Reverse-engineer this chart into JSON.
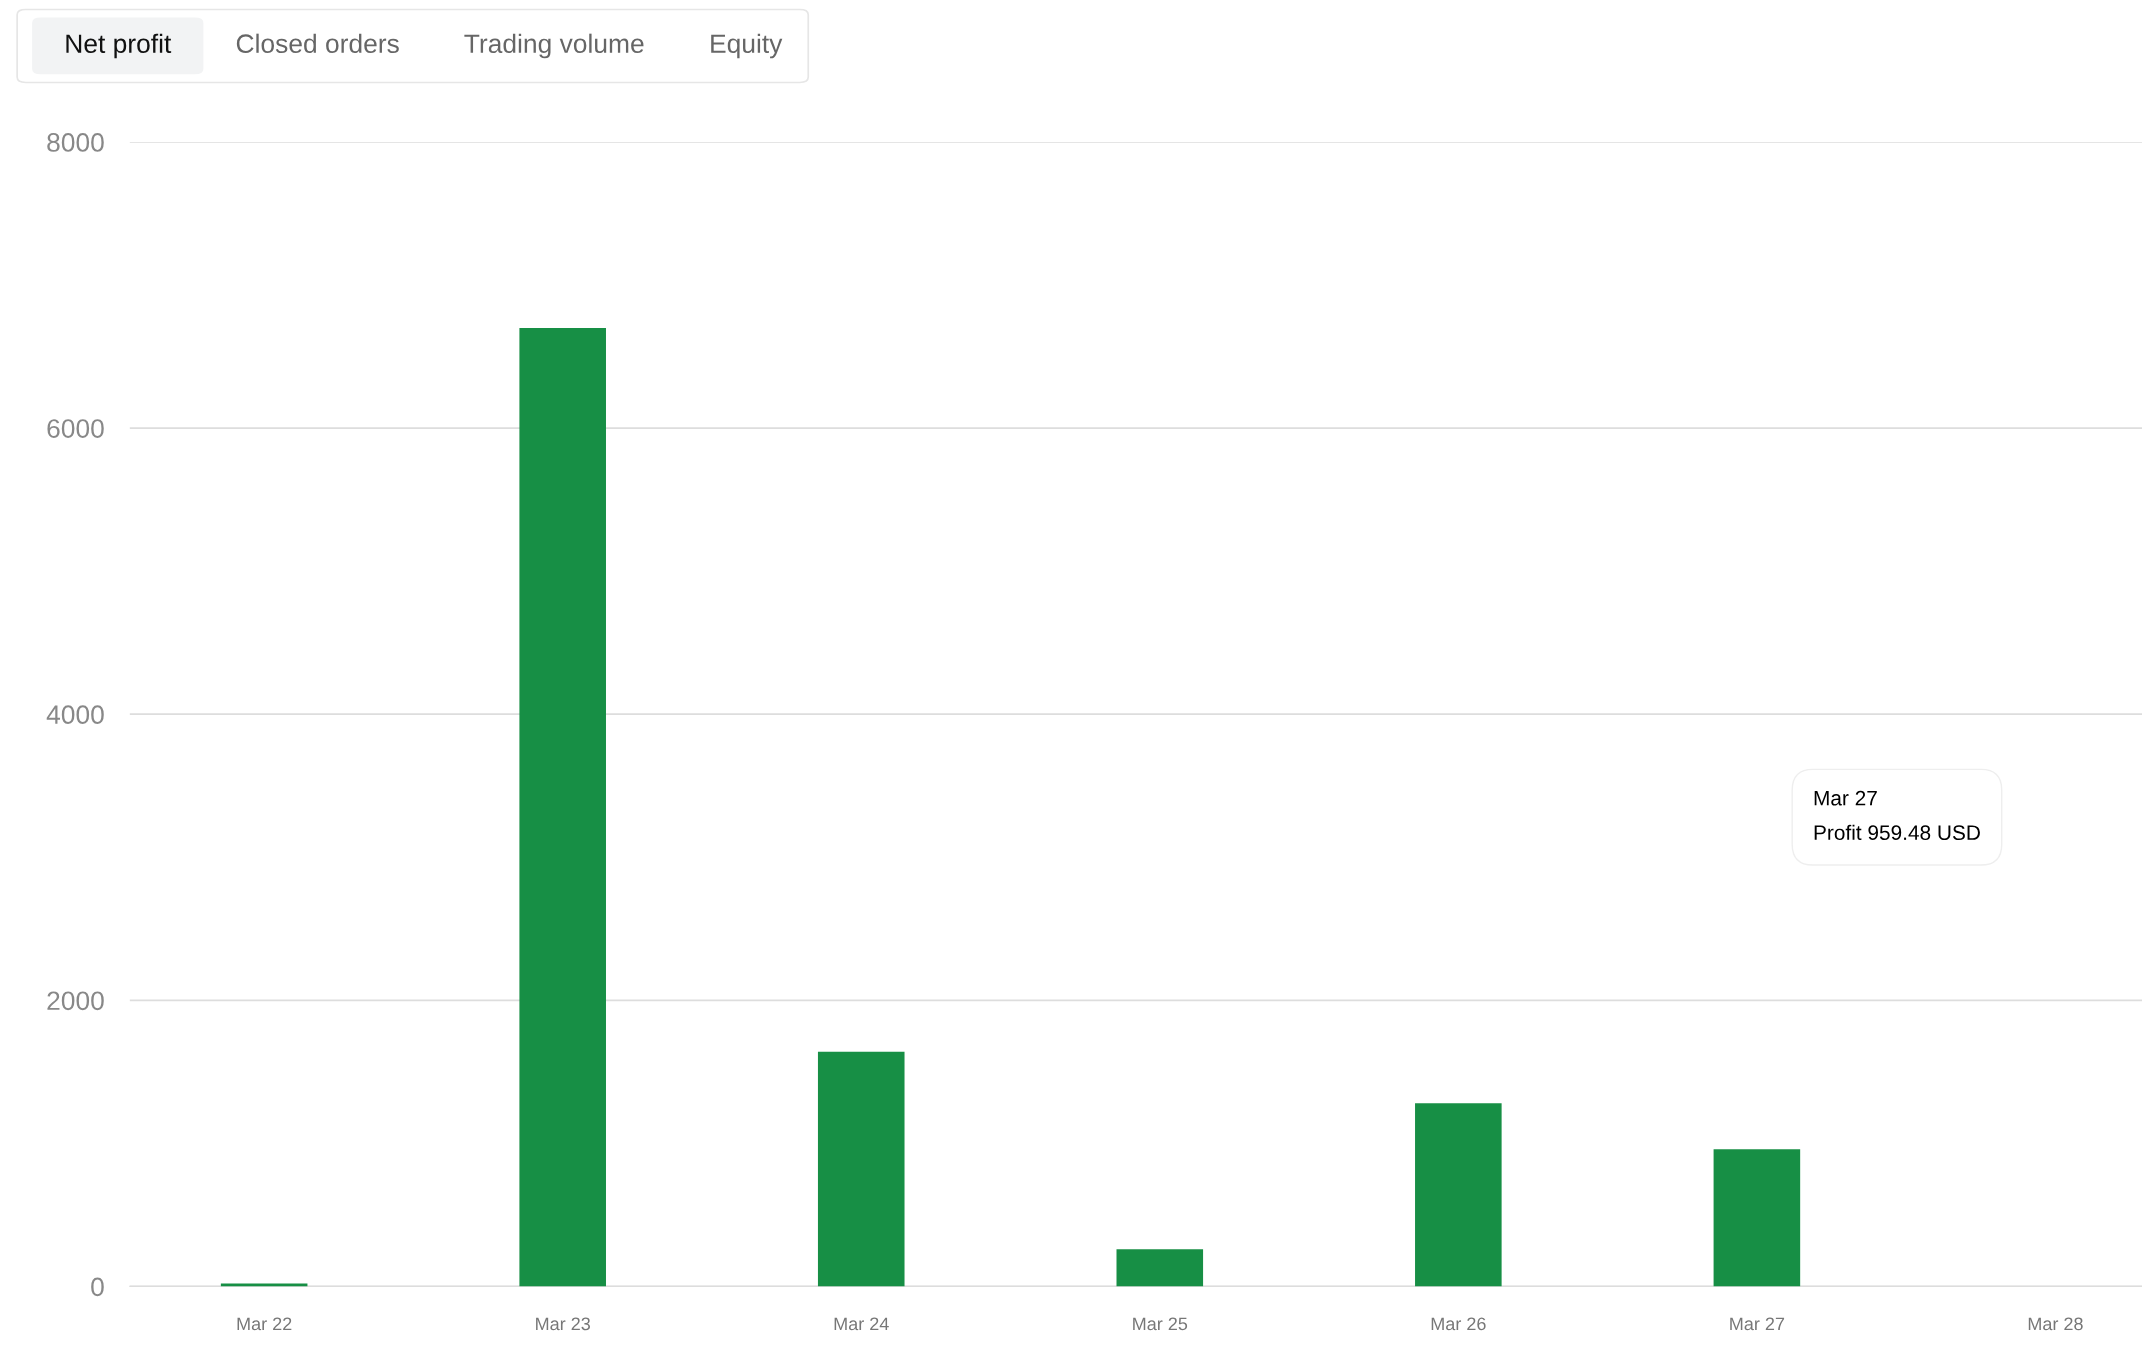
{
  "chart_data": {
    "type": "bar",
    "categories": [
      "Mar 22",
      "Mar 23",
      "Mar 24",
      "Mar 25",
      "Mar 26",
      "Mar 27",
      "Mar 28"
    ],
    "values": [
      20,
      6700,
      1640,
      260,
      1280,
      959.48,
      null
    ],
    "color": "#178f45",
    "ylim": [
      0,
      8000
    ],
    "yticks": [
      0,
      2000,
      4000,
      6000,
      8000
    ],
    "grid": "y",
    "annotations": [
      "Net profit",
      "Closed orders",
      "Trading volume",
      "Equity",
      "Mar 27\nProfit 959.48 USD"
    ]
  }
}
